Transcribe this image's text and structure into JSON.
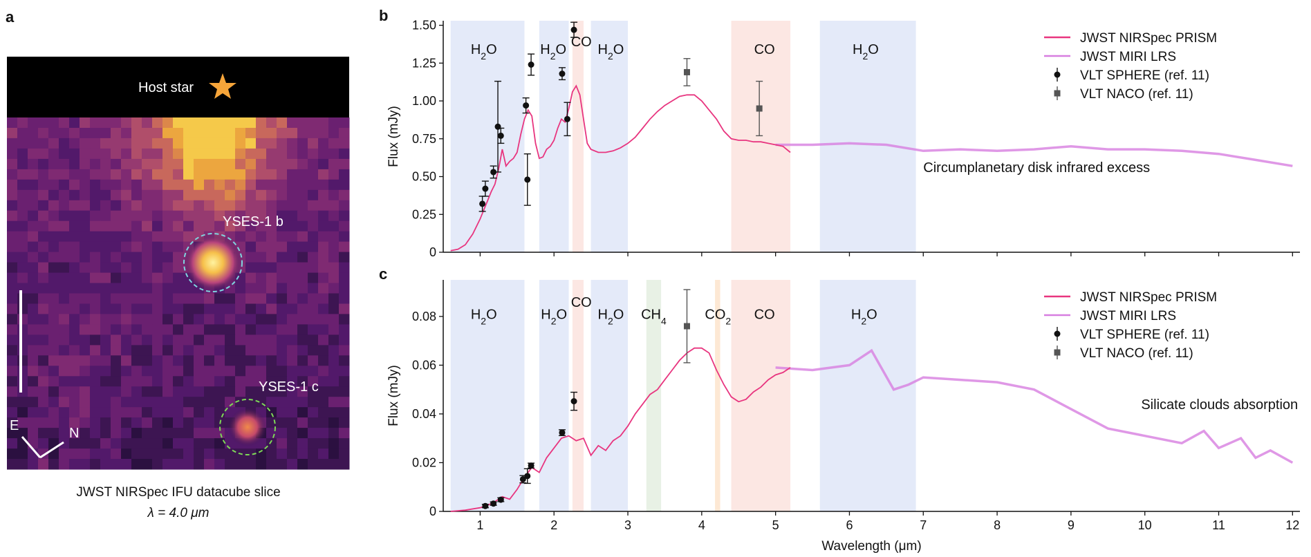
{
  "panels": {
    "a": {
      "label": "a",
      "host_star_label": "Host star",
      "planet_b_label": "YSES-1 b",
      "planet_c_label": "YSES-1 c",
      "compass_e": "E",
      "compass_n": "N",
      "caption_line1": "JWST NIRSpec IFU datacube slice",
      "caption_line2": "λ = 4.0 μm",
      "colors": {
        "background": "#000000",
        "star": "#f6a53a",
        "circle_b": "#7fd6e0",
        "circle_c": "#7ed957"
      }
    },
    "b": {
      "label": "b"
    },
    "c": {
      "label": "c"
    }
  },
  "legend": {
    "prism": "JWST NIRSpec PRISM",
    "miri": "JWST MIRI LRS",
    "sphere": "VLT SPHERE (ref. 11)",
    "naco": "VLT NACO (ref. 11)",
    "colors": {
      "prism": "#e8357f",
      "miri": "#d77ee0",
      "sphere": "#111111",
      "naco": "#555555"
    }
  },
  "chart_data": [
    {
      "panel": "b",
      "type": "line",
      "xlabel": "",
      "ylabel": "Flux (mJy)",
      "xlim": [
        0.5,
        12.1
      ],
      "ylim": [
        0,
        1.53
      ],
      "yticks": [
        0,
        0.25,
        0.5,
        0.75,
        1.0,
        1.25,
        1.5
      ],
      "ytick_labels": [
        "0",
        "0.25",
        "0.50",
        "0.75",
        "1.00",
        "1.25",
        "1.50"
      ],
      "xticks": [
        1,
        2,
        3,
        4,
        5,
        6,
        7,
        8,
        9,
        10,
        11,
        12
      ],
      "bands": [
        {
          "x0": 0.6,
          "x1": 1.6,
          "color": "#dfe6f8",
          "label": "H2O",
          "lx": 1.05,
          "ly": 1.31
        },
        {
          "x0": 1.8,
          "x1": 2.2,
          "color": "#dfe6f8",
          "label": "H2O",
          "lx": 1.99,
          "ly": 1.31
        },
        {
          "x0": 2.25,
          "x1": 2.4,
          "color": "#fbe3de",
          "label": "CO",
          "lx": 2.37,
          "ly": 1.36
        },
        {
          "x0": 2.5,
          "x1": 3.0,
          "color": "#dfe6f8",
          "label": "H2O",
          "lx": 2.77,
          "ly": 1.31
        },
        {
          "x0": 4.4,
          "x1": 5.2,
          "color": "#fbe3de",
          "label": "CO",
          "lx": 4.85,
          "ly": 1.31
        },
        {
          "x0": 5.6,
          "x1": 6.9,
          "color": "#dfe6f8",
          "label": "H2O",
          "lx": 6.22,
          "ly": 1.31
        }
      ],
      "prism": {
        "x": [
          0.6,
          0.7,
          0.8,
          0.9,
          1.0,
          1.05,
          1.1,
          1.15,
          1.2,
          1.25,
          1.3,
          1.35,
          1.4,
          1.45,
          1.5,
          1.55,
          1.6,
          1.65,
          1.7,
          1.75,
          1.8,
          1.85,
          1.9,
          1.95,
          2.0,
          2.05,
          2.1,
          2.15,
          2.2,
          2.25,
          2.3,
          2.35,
          2.4,
          2.45,
          2.5,
          2.6,
          2.7,
          2.8,
          2.9,
          3.0,
          3.1,
          3.2,
          3.3,
          3.4,
          3.5,
          3.6,
          3.7,
          3.8,
          3.9,
          4.0,
          4.1,
          4.2,
          4.3,
          4.4,
          4.5,
          4.6,
          4.7,
          4.8,
          4.9,
          5.0,
          5.1,
          5.2
        ],
        "y": [
          0.01,
          0.02,
          0.05,
          0.12,
          0.22,
          0.28,
          0.34,
          0.4,
          0.45,
          0.55,
          0.68,
          0.57,
          0.6,
          0.62,
          0.66,
          0.78,
          0.88,
          0.94,
          0.9,
          0.72,
          0.62,
          0.63,
          0.68,
          0.7,
          0.74,
          0.82,
          0.88,
          0.86,
          0.95,
          1.06,
          1.1,
          1.04,
          0.88,
          0.72,
          0.68,
          0.66,
          0.66,
          0.67,
          0.69,
          0.72,
          0.76,
          0.82,
          0.88,
          0.93,
          0.97,
          1.0,
          1.03,
          1.04,
          1.04,
          1.0,
          0.94,
          0.88,
          0.8,
          0.75,
          0.74,
          0.74,
          0.73,
          0.73,
          0.72,
          0.71,
          0.7,
          0.66
        ]
      },
      "miri": {
        "x": [
          5.0,
          5.5,
          6.0,
          6.5,
          7.0,
          7.5,
          8.0,
          8.5,
          9.0,
          9.5,
          10.0,
          10.5,
          11.0,
          11.5,
          12.0
        ],
        "y": [
          0.71,
          0.71,
          0.72,
          0.71,
          0.67,
          0.68,
          0.67,
          0.68,
          0.7,
          0.68,
          0.68,
          0.67,
          0.65,
          0.61,
          0.57
        ]
      },
      "sphere": [
        {
          "x": 1.03,
          "y": 0.32,
          "err": 0.05
        },
        {
          "x": 1.07,
          "y": 0.42,
          "err": 0.05
        },
        {
          "x": 1.18,
          "y": 0.53,
          "err": 0.04
        },
        {
          "x": 1.24,
          "y": 0.83,
          "err": 0.3
        },
        {
          "x": 1.28,
          "y": 0.77,
          "err": 0.05
        },
        {
          "x": 1.62,
          "y": 0.97,
          "err": 0.05
        },
        {
          "x": 1.64,
          "y": 0.48,
          "err": 0.17
        },
        {
          "x": 1.69,
          "y": 1.24,
          "err": 0.07
        },
        {
          "x": 2.11,
          "y": 1.18,
          "err": 0.04
        },
        {
          "x": 2.18,
          "y": 0.88,
          "err": 0.11
        },
        {
          "x": 2.27,
          "y": 1.47,
          "err": 0.05
        }
      ],
      "naco": [
        {
          "x": 3.8,
          "y": 1.19,
          "err": 0.09
        },
        {
          "x": 4.78,
          "y": 0.95,
          "err": 0.18
        }
      ],
      "annotation": {
        "text": "Circumplanetary disk infrared excess",
        "x": 7.0,
        "y": 0.53
      }
    },
    {
      "panel": "c",
      "type": "line",
      "xlabel": "Wavelength (μm)",
      "ylabel": "Flux (mJy)",
      "xlim": [
        0.5,
        12.1
      ],
      "ylim": [
        0,
        0.095
      ],
      "yticks": [
        0,
        0.02,
        0.04,
        0.06,
        0.08
      ],
      "ytick_labels": [
        "0",
        "0.02",
        "0.04",
        "0.06",
        "0.08"
      ],
      "xticks": [
        1,
        2,
        3,
        4,
        5,
        6,
        7,
        8,
        9,
        10,
        11,
        12
      ],
      "xtick_labels": [
        "1",
        "2",
        "3",
        "4",
        "5",
        "6",
        "7",
        "8",
        "9",
        "10",
        "11",
        "12"
      ],
      "bands": [
        {
          "x0": 0.6,
          "x1": 1.6,
          "color": "#dfe6f8",
          "label": "H2O",
          "lx": 1.05,
          "ly": 0.079
        },
        {
          "x0": 1.8,
          "x1": 2.2,
          "color": "#dfe6f8",
          "label": "H2O",
          "lx": 2.0,
          "ly": 0.079
        },
        {
          "x0": 2.25,
          "x1": 2.4,
          "color": "#fbe3de",
          "label": "CO",
          "lx": 2.37,
          "ly": 0.084
        },
        {
          "x0": 2.5,
          "x1": 3.0,
          "color": "#dfe6f8",
          "label": "H2O",
          "lx": 2.77,
          "ly": 0.079
        },
        {
          "x0": 3.25,
          "x1": 3.45,
          "color": "#e4eee0",
          "label": "CH4",
          "lx": 3.35,
          "ly": 0.079
        },
        {
          "x0": 4.18,
          "x1": 4.25,
          "color": "#fde4cc",
          "label": "CO2",
          "lx": 4.22,
          "ly": 0.079
        },
        {
          "x0": 4.4,
          "x1": 5.2,
          "color": "#fbe3de",
          "label": "CO",
          "lx": 4.85,
          "ly": 0.079
        },
        {
          "x0": 5.6,
          "x1": 6.9,
          "color": "#dfe6f8",
          "label": "H2O",
          "lx": 6.2,
          "ly": 0.079
        }
      ],
      "prism": {
        "x": [
          0.6,
          0.8,
          1.0,
          1.1,
          1.2,
          1.3,
          1.4,
          1.5,
          1.6,
          1.7,
          1.8,
          1.9,
          2.0,
          2.1,
          2.2,
          2.3,
          2.4,
          2.5,
          2.6,
          2.7,
          2.8,
          2.9,
          3.0,
          3.1,
          3.2,
          3.3,
          3.4,
          3.5,
          3.6,
          3.7,
          3.8,
          3.9,
          4.0,
          4.1,
          4.2,
          4.3,
          4.4,
          4.5,
          4.6,
          4.7,
          4.8,
          4.9,
          5.0,
          5.1,
          5.2
        ],
        "y": [
          0.0,
          0.0005,
          0.0015,
          0.0025,
          0.004,
          0.006,
          0.005,
          0.009,
          0.014,
          0.018,
          0.016,
          0.022,
          0.026,
          0.03,
          0.031,
          0.029,
          0.03,
          0.023,
          0.027,
          0.025,
          0.029,
          0.031,
          0.035,
          0.04,
          0.044,
          0.048,
          0.05,
          0.054,
          0.058,
          0.062,
          0.065,
          0.067,
          0.067,
          0.065,
          0.058,
          0.052,
          0.047,
          0.045,
          0.046,
          0.049,
          0.051,
          0.054,
          0.056,
          0.057,
          0.059
        ]
      },
      "miri": {
        "x": [
          5.0,
          5.5,
          6.0,
          6.3,
          6.6,
          6.8,
          7.0,
          7.5,
          8.0,
          8.5,
          9.0,
          9.5,
          10.0,
          10.5,
          10.8,
          11.0,
          11.3,
          11.5,
          11.7,
          12.0
        ],
        "y": [
          0.059,
          0.058,
          0.06,
          0.066,
          0.05,
          0.052,
          0.055,
          0.054,
          0.053,
          0.05,
          0.042,
          0.034,
          0.031,
          0.028,
          0.033,
          0.026,
          0.03,
          0.022,
          0.025,
          0.02
        ]
      },
      "sphere": [
        {
          "x": 1.07,
          "y": 0.0022,
          "err": 0.0007
        },
        {
          "x": 1.18,
          "y": 0.0032,
          "err": 0.0007
        },
        {
          "x": 1.28,
          "y": 0.0048,
          "err": 0.0008
        },
        {
          "x": 1.58,
          "y": 0.0132,
          "err": 0.0015
        },
        {
          "x": 1.64,
          "y": 0.0145,
          "err": 0.003
        },
        {
          "x": 1.69,
          "y": 0.0188,
          "err": 0.001
        },
        {
          "x": 2.11,
          "y": 0.0323,
          "err": 0.0012
        },
        {
          "x": 2.27,
          "y": 0.0452,
          "err": 0.0037
        }
      ],
      "naco": [
        {
          "x": 3.8,
          "y": 0.076,
          "err": 0.015
        }
      ],
      "annotation": {
        "text": "Silicate clouds absorption",
        "x": 9.95,
        "y": 0.042
      }
    }
  ]
}
